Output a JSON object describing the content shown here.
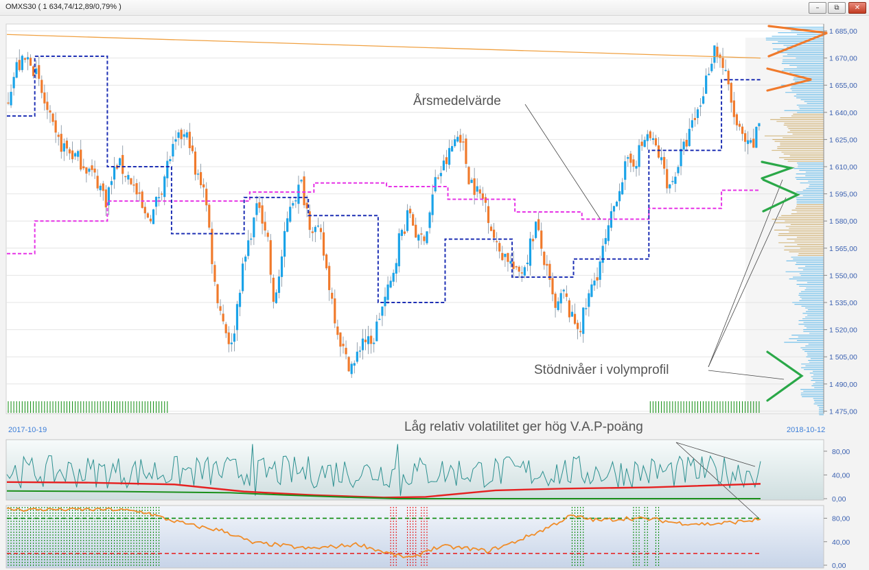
{
  "window": {
    "title": "OMXS30 ( 1 634,74/12,89/0,79% )",
    "buttons": {
      "minimize": "–",
      "restore": "⧉",
      "close": "✕"
    }
  },
  "colors": {
    "up": "#1aa3e8",
    "down": "#f07a2c",
    "annual_average": "#e632e6",
    "quarterly": "#1d2fb4",
    "trend": "#f0a040",
    "volume_profile_up": "#4fb2e8",
    "volume_profile_down": "#c9a55c",
    "volatility": "#2a8f8f",
    "volatility_avg": "#e62020",
    "volatility_low": "#1a8f1a",
    "vap": "#f08c28",
    "vap_high": "#0a8a0a",
    "vap_low": "#e81818",
    "support_marker": "#2aa848",
    "resistance_marker": "#f07a2c"
  },
  "chart_data": [
    {
      "type": "candlestick",
      "panel": "price",
      "x_start": "2017-10-19",
      "x_end": "2018-10-12",
      "ylim": [
        1475,
        1690
      ],
      "yticks": [
        "1 685,00",
        "1 670,00",
        "1 655,00",
        "1 640,00",
        "1 625,00",
        "1 610,00",
        "1 595,00",
        "1 580,00",
        "1 565,00",
        "1 550,00",
        "1 535,00",
        "1 520,00",
        "1 505,00",
        "1 490,00",
        "1 475,00"
      ],
      "close_path": [
        [
          0,
          1645
        ],
        [
          4,
          1665
        ],
        [
          9,
          1670
        ],
        [
          13,
          1650
        ],
        [
          18,
          1625
        ],
        [
          23,
          1618
        ],
        [
          28,
          1612
        ],
        [
          33,
          1602
        ],
        [
          36,
          1592
        ],
        [
          40,
          1612
        ],
        [
          45,
          1603
        ],
        [
          50,
          1582
        ],
        [
          53,
          1585
        ],
        [
          56,
          1600
        ],
        [
          59,
          1616
        ],
        [
          63,
          1627
        ],
        [
          66,
          1625
        ],
        [
          68,
          1605
        ],
        [
          71,
          1601
        ],
        [
          73,
          1575
        ],
        [
          75,
          1545
        ],
        [
          78,
          1525
        ],
        [
          81,
          1510
        ],
        [
          84,
          1545
        ],
        [
          88,
          1575
        ],
        [
          91,
          1590
        ],
        [
          94,
          1570
        ],
        [
          96,
          1532
        ],
        [
          99,
          1560
        ],
        [
          102,
          1590
        ],
        [
          106,
          1600
        ],
        [
          109,
          1580
        ],
        [
          113,
          1570
        ],
        [
          116,
          1545
        ],
        [
          119,
          1520
        ],
        [
          122,
          1503
        ],
        [
          125,
          1500
        ],
        [
          128,
          1516
        ],
        [
          131,
          1510
        ],
        [
          134,
          1528
        ],
        [
          138,
          1545
        ],
        [
          141,
          1570
        ],
        [
          145,
          1585
        ],
        [
          148,
          1568
        ],
        [
          151,
          1576
        ],
        [
          154,
          1602
        ],
        [
          158,
          1613
        ],
        [
          161,
          1625
        ],
        [
          163,
          1628
        ],
        [
          166,
          1605
        ],
        [
          169,
          1596
        ],
        [
          172,
          1590
        ],
        [
          176,
          1565
        ],
        [
          180,
          1560
        ],
        [
          183,
          1550
        ],
        [
          186,
          1556
        ],
        [
          190,
          1578
        ],
        [
          193,
          1558
        ],
        [
          197,
          1530
        ],
        [
          200,
          1540
        ],
        [
          203,
          1525
        ],
        [
          206,
          1522
        ],
        [
          209,
          1538
        ],
        [
          212,
          1552
        ],
        [
          216,
          1574
        ],
        [
          219,
          1595
        ],
        [
          222,
          1609
        ],
        [
          226,
          1615
        ],
        [
          230,
          1628
        ],
        [
          233,
          1620
        ],
        [
          236,
          1608
        ],
        [
          238,
          1598
        ],
        [
          241,
          1612
        ],
        [
          245,
          1628
        ],
        [
          249,
          1645
        ],
        [
          252,
          1665
        ],
        [
          254,
          1676
        ],
        [
          256,
          1670
        ],
        [
          258,
          1660
        ],
        [
          260,
          1645
        ],
        [
          262,
          1632
        ],
        [
          264,
          1625
        ],
        [
          266,
          1620
        ],
        [
          268,
          1622
        ],
        [
          270,
          1634.74
        ]
      ],
      "candle_count": 270,
      "annual_average_steps": [
        {
          "from": 0,
          "to": 10,
          "value": 1562
        },
        {
          "from": 10,
          "to": 36,
          "value": 1580
        },
        {
          "from": 36,
          "to": 87,
          "value": 1591
        },
        {
          "from": 87,
          "to": 110,
          "value": 1596
        },
        {
          "from": 110,
          "to": 136,
          "value": 1601
        },
        {
          "from": 136,
          "to": 158,
          "value": 1599
        },
        {
          "from": 158,
          "to": 182,
          "value": 1592
        },
        {
          "from": 182,
          "to": 206,
          "value": 1585
        },
        {
          "from": 206,
          "to": 230,
          "value": 1581
        },
        {
          "from": 230,
          "to": 256,
          "value": 1587
        },
        {
          "from": 256,
          "to": 270,
          "value": 1597
        }
      ],
      "quarterly_average_steps": [
        {
          "from": 0,
          "to": 10,
          "value": 1638
        },
        {
          "from": 10,
          "to": 36,
          "value": 1671
        },
        {
          "from": 36,
          "to": 59,
          "value": 1610
        },
        {
          "from": 59,
          "to": 85,
          "value": 1573
        },
        {
          "from": 85,
          "to": 108,
          "value": 1593
        },
        {
          "from": 108,
          "to": 133,
          "value": 1583
        },
        {
          "from": 133,
          "to": 157,
          "value": 1535
        },
        {
          "from": 157,
          "to": 181,
          "value": 1570
        },
        {
          "from": 181,
          "to": 203,
          "value": 1549
        },
        {
          "from": 203,
          "to": 230,
          "value": 1559
        },
        {
          "from": 230,
          "to": 256,
          "value": 1619
        },
        {
          "from": 256,
          "to": 270,
          "value": 1658
        }
      ],
      "trendline": {
        "from": [
          0,
          1683
        ],
        "to": [
          270,
          1670
        ]
      },
      "volume_bins": [
        [
          1685,
          60
        ],
        [
          1680,
          82
        ],
        [
          1675,
          70
        ],
        [
          1670,
          60
        ],
        [
          1665,
          55
        ],
        [
          1660,
          45
        ],
        [
          1655,
          58
        ],
        [
          1650,
          50
        ],
        [
          1645,
          36
        ],
        [
          1640,
          52
        ],
        [
          1635,
          70
        ],
        [
          1630,
          62
        ],
        [
          1625,
          78
        ],
        [
          1620,
          70
        ],
        [
          1615,
          58
        ],
        [
          1610,
          46
        ],
        [
          1605,
          38
        ],
        [
          1600,
          30
        ],
        [
          1595,
          42
        ],
        [
          1590,
          36
        ],
        [
          1585,
          60
        ],
        [
          1580,
          74
        ],
        [
          1575,
          66
        ],
        [
          1570,
          60
        ],
        [
          1565,
          52
        ],
        [
          1560,
          48
        ],
        [
          1555,
          40
        ],
        [
          1550,
          50
        ],
        [
          1545,
          36
        ],
        [
          1540,
          32
        ],
        [
          1535,
          42
        ],
        [
          1530,
          28
        ],
        [
          1525,
          36
        ],
        [
          1520,
          26
        ],
        [
          1515,
          52
        ],
        [
          1510,
          30
        ],
        [
          1505,
          26
        ],
        [
          1500,
          32
        ],
        [
          1495,
          20
        ],
        [
          1490,
          18
        ],
        [
          1485,
          30
        ],
        [
          1480,
          14
        ],
        [
          1475,
          10
        ]
      ],
      "high_vap_ticks_ranges": [
        [
          0,
          58
        ],
        [
          230,
          270
        ]
      ],
      "annotations": {
        "annual_average_label": "Årsmedelvärde",
        "support_label": "Stödnivåer i volymprofil",
        "volatility_label": "Låg relativ volatilitet ger hög V.A.P-poäng"
      }
    },
    {
      "type": "line",
      "panel": "volatility",
      "ylim": [
        0,
        95
      ],
      "yticks": [
        "80,00",
        "40,00",
        "0,00"
      ],
      "series": [
        {
          "key": "oscillator",
          "values_seed": "noisy 20-80"
        },
        {
          "key": "average",
          "path": [
            [
              0,
              28
            ],
            [
              30,
              27
            ],
            [
              60,
              24
            ],
            [
              85,
              12
            ],
            [
              110,
              6
            ],
            [
              135,
              2
            ],
            [
              150,
              3
            ],
            [
              175,
              14
            ],
            [
              200,
              17
            ],
            [
              230,
              19
            ],
            [
              270,
              25
            ]
          ]
        },
        {
          "key": "low",
          "path": [
            [
              0,
              13
            ],
            [
              40,
              12
            ],
            [
              80,
              10
            ],
            [
              100,
              6
            ],
            [
              125,
              2
            ],
            [
              140,
              0
            ],
            [
              270,
              0
            ]
          ]
        }
      ]
    },
    {
      "type": "line",
      "panel": "vap",
      "ylim": [
        0,
        100
      ],
      "yticks": [
        "80,00",
        "40,00",
        "0,00"
      ],
      "thresholds": {
        "high": 80,
        "low": 20
      },
      "series": [
        {
          "key": "vap",
          "path": [
            [
              0,
              95
            ],
            [
              20,
              95
            ],
            [
              38,
              95
            ],
            [
              50,
              90
            ],
            [
              56,
              80
            ],
            [
              66,
              68
            ],
            [
              78,
              58
            ],
            [
              82,
              50
            ],
            [
              88,
              38
            ],
            [
              96,
              35
            ],
            [
              108,
              28
            ],
            [
              118,
              32
            ],
            [
              126,
              36
            ],
            [
              134,
              24
            ],
            [
              140,
              16
            ],
            [
              146,
              12
            ],
            [
              150,
              25
            ],
            [
              156,
              32
            ],
            [
              166,
              28
            ],
            [
              172,
              24
            ],
            [
              180,
              36
            ],
            [
              192,
              60
            ],
            [
              202,
              84
            ],
            [
              212,
              76
            ],
            [
              222,
              80
            ],
            [
              232,
              78
            ],
            [
              240,
              72
            ],
            [
              252,
              70
            ],
            [
              262,
              74
            ],
            [
              270,
              78
            ]
          ]
        }
      ],
      "shaded_high_ranges": [
        [
          0,
          54
        ],
        [
          202,
          206
        ],
        [
          224,
          226
        ],
        [
          228,
          229
        ],
        [
          232,
          233
        ]
      ],
      "shaded_low_ranges": [
        [
          137,
          139
        ],
        [
          143,
          146
        ],
        [
          148,
          150
        ]
      ]
    }
  ]
}
